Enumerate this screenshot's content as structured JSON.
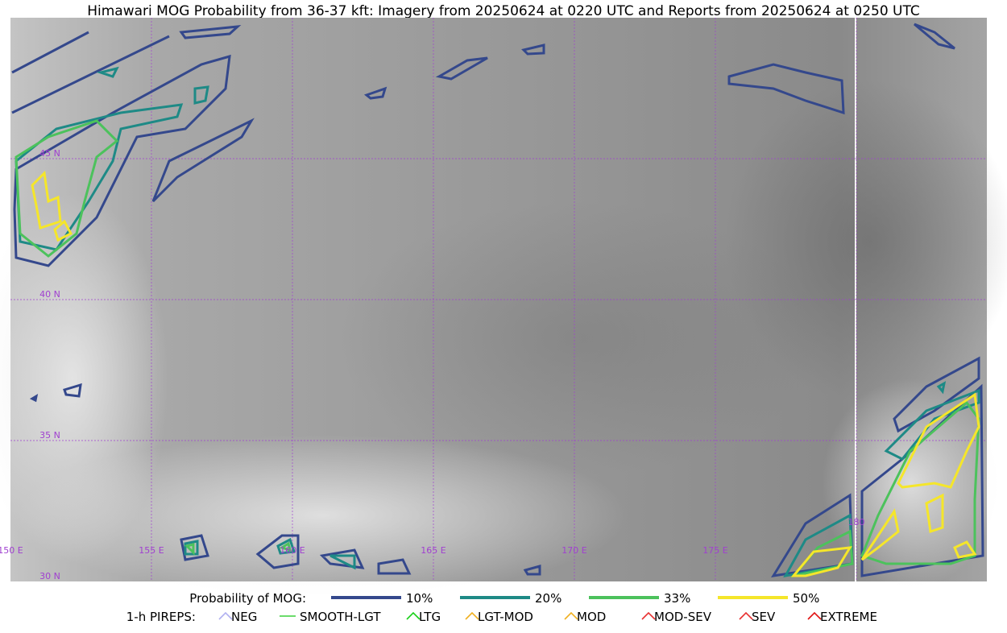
{
  "title": "Himawari MOG Probability from 36-37 kft: Imagery from 20250624 at 0220 UTC and Reports from 20250624 at 0250 UTC",
  "map": {
    "lat_labels": [
      "45 N",
      "40 N",
      "35 N",
      "30 N"
    ],
    "lon_labels": [
      "150 E",
      "155 E",
      "160 E",
      "165 E",
      "170 E",
      "175 E",
      "180"
    ]
  },
  "legend": {
    "mog_title": "Probability of MOG:",
    "mog_levels": [
      {
        "label": "10%",
        "color": "#34488c"
      },
      {
        "label": "20%",
        "color": "#1e8a86"
      },
      {
        "label": "33%",
        "color": "#4cc25c"
      },
      {
        "label": "50%",
        "color": "#f5e62a"
      }
    ],
    "pirep_title": "1-h PIREPS:",
    "pireps": [
      {
        "label": "NEG",
        "color": "#b0b0f0"
      },
      {
        "label": "SMOOTH-LGT",
        "color": "#3ad03a"
      },
      {
        "label": "LTG",
        "color": "#18d018"
      },
      {
        "label": "LGT-MOD",
        "color": "#f0b020"
      },
      {
        "label": "MOD",
        "color": "#f0b020"
      },
      {
        "label": "MOD-SEV",
        "color": "#e83030"
      },
      {
        "label": "SEV",
        "color": "#e83030"
      },
      {
        "label": "EXTREME",
        "color": "#e01010"
      }
    ]
  }
}
